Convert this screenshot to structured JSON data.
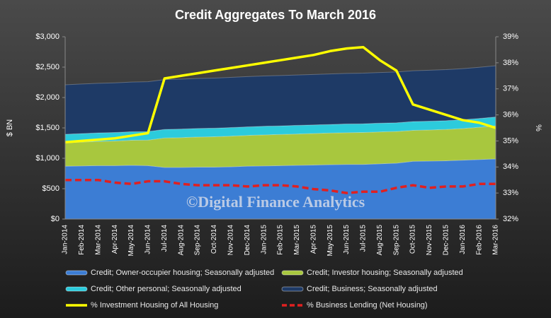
{
  "chart_data": {
    "type": "stacked-area-line",
    "title": "Credit Aggregates To March 2016",
    "y_label": "$ BN",
    "y2_label": "%",
    "watermark": "©Digital Finance Analytics",
    "categories": [
      "Jan-2014",
      "Feb-2014",
      "Mar-2014",
      "Apr-2014",
      "May-2014",
      "Jun-2014",
      "Jul-2014",
      "Aug-2014",
      "Sep-2014",
      "Oct-2014",
      "Nov-2014",
      "Dec-2014",
      "Jan-2015",
      "Feb-2015",
      "Mar-2015",
      "Apr-2015",
      "May-2015",
      "Jun-2015",
      "Jul-2015",
      "Aug-2015",
      "Sep-2015",
      "Oct-2015",
      "Nov-2015",
      "Dec-2015",
      "Jan-2016",
      "Feb-2016",
      "Mar-2016"
    ],
    "ylim": [
      0,
      3000
    ],
    "yticks": [
      {
        "value": 0,
        "label": "$0"
      },
      {
        "value": 500,
        "label": "$500"
      },
      {
        "value": 1000,
        "label": "$1,000"
      },
      {
        "value": 1500,
        "label": "$1,500"
      },
      {
        "value": 2000,
        "label": "$2,000"
      },
      {
        "value": 2500,
        "label": "$2,500"
      },
      {
        "value": 3000,
        "label": "$3,000"
      }
    ],
    "y2lim": [
      32,
      39
    ],
    "y2ticks": [
      {
        "value": 32,
        "label": "32%"
      },
      {
        "value": 33,
        "label": "33%"
      },
      {
        "value": 34,
        "label": "34%"
      },
      {
        "value": 35,
        "label": "35%"
      },
      {
        "value": 36,
        "label": "36%"
      },
      {
        "value": 37,
        "label": "37%"
      },
      {
        "value": 38,
        "label": "38%"
      },
      {
        "value": 39,
        "label": "39%"
      }
    ],
    "series": [
      {
        "name": "Credit; Owner-occupier housing; Seasonally adjusted",
        "kind": "area",
        "color": "#3c7dd4",
        "values": [
          870,
          875,
          880,
          880,
          885,
          880,
          850,
          850,
          855,
          855,
          860,
          870,
          875,
          880,
          885,
          890,
          895,
          900,
          900,
          910,
          920,
          950,
          955,
          960,
          970,
          980,
          990
        ]
      },
      {
        "name": "Credit; Investor housing; Seasonally adjusted",
        "kind": "area",
        "color": "#a8c73e",
        "values": [
          385,
          392,
          398,
          405,
          412,
          420,
          485,
          490,
          495,
          500,
          505,
          507,
          510,
          512,
          515,
          518,
          520,
          522,
          525,
          525,
          522,
          510,
          512,
          515,
          520,
          530,
          545
        ]
      },
      {
        "name": "Credit; Other personal; Seasonally adjusted",
        "kind": "area",
        "color": "#2ccbdc",
        "values": [
          140,
          140,
          140,
          140,
          140,
          140,
          140,
          141,
          141,
          141,
          141,
          141,
          142,
          142,
          142,
          142,
          142,
          143,
          143,
          143,
          143,
          144,
          144,
          144,
          145,
          145,
          145
        ]
      },
      {
        "name": "Credit; Business; Seasonally adjusted",
        "kind": "area",
        "color": "#1e3a66",
        "values": [
          815,
          815,
          816,
          817,
          818,
          820,
          820,
          822,
          823,
          824,
          825,
          826,
          827,
          828,
          829,
          830,
          831,
          832,
          833,
          834,
          835,
          836,
          838,
          840,
          841,
          842,
          843
        ]
      },
      {
        "name": "% Investment Housing of All Housing",
        "kind": "line",
        "axis": "y2",
        "color": "#ffff00",
        "values": [
          34.95,
          35.0,
          35.05,
          35.1,
          35.2,
          35.3,
          37.4,
          37.5,
          37.6,
          37.7,
          37.8,
          37.9,
          38.0,
          38.1,
          38.2,
          38.3,
          38.45,
          38.55,
          38.6,
          38.1,
          37.7,
          36.4,
          36.2,
          36.0,
          35.8,
          35.7,
          35.5
        ]
      },
      {
        "name": "% Business Lending (Net Housing)",
        "kind": "line",
        "axis": "y2",
        "color": "#e02020",
        "dash": true,
        "values": [
          33.5,
          33.5,
          33.5,
          33.4,
          33.35,
          33.45,
          33.45,
          33.35,
          33.3,
          33.3,
          33.3,
          33.25,
          33.3,
          33.3,
          33.25,
          33.15,
          33.1,
          33.0,
          33.05,
          33.05,
          33.2,
          33.3,
          33.2,
          33.25,
          33.25,
          33.35,
          33.35
        ]
      }
    ]
  }
}
